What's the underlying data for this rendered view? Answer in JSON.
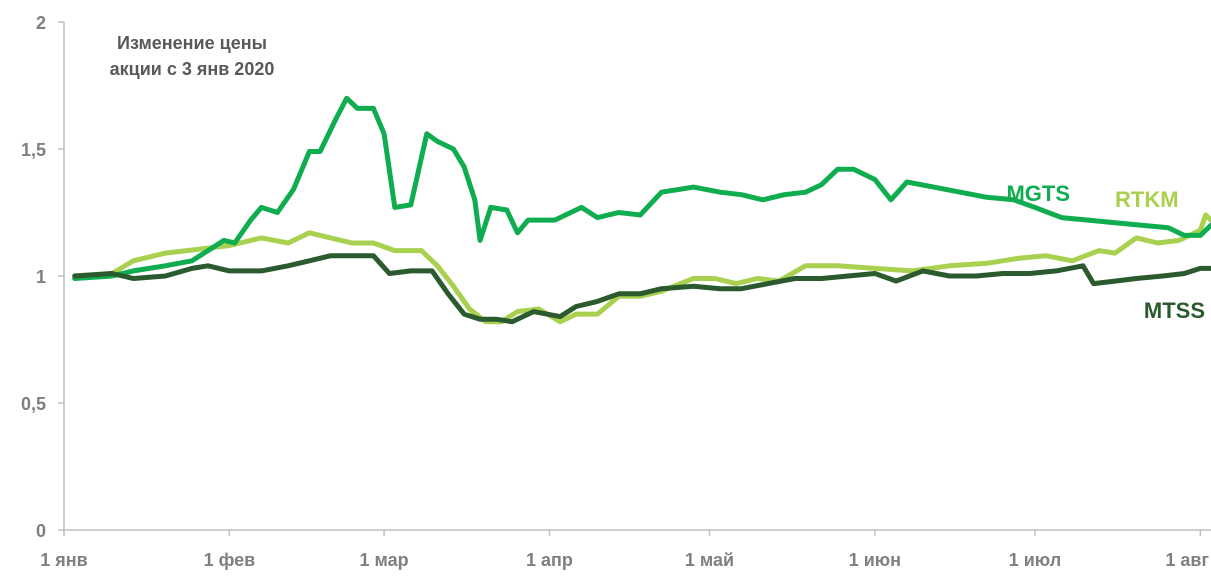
{
  "chart_data": {
    "type": "line",
    "title_lines": [
      "Изменение цены",
      "акции с 3 янв 2020"
    ],
    "xlabel": "",
    "ylabel": "",
    "x_range": [
      "2020-01-01",
      "2020-08-03"
    ],
    "ylim": [
      0,
      2
    ],
    "y_ticks": [
      0,
      0.5,
      1,
      1.5,
      2
    ],
    "y_tick_labels": [
      "0",
      "0,5",
      "1",
      "1,5",
      "2"
    ],
    "x_ticks": [
      "2020-01-01",
      "2020-02-01",
      "2020-03-01",
      "2020-04-01",
      "2020-05-01",
      "2020-06-01",
      "2020-07-01",
      "2020-08-01"
    ],
    "x_tick_labels": [
      "1 янв",
      "1 фев",
      "1 мар",
      "1 апр",
      "1 май",
      "1 июн",
      "1 июл",
      "1 авг"
    ],
    "grid": false,
    "legend": "inline labels",
    "series": [
      {
        "name": "RTKM",
        "color": "#a9d04f",
        "points": [
          [
            "2020-01-03",
            1.0
          ],
          [
            "2020-01-10",
            1.01
          ],
          [
            "2020-01-14",
            1.06
          ],
          [
            "2020-01-20",
            1.09
          ],
          [
            "2020-01-24",
            1.1
          ],
          [
            "2020-01-28",
            1.11
          ],
          [
            "2020-02-01",
            1.12
          ],
          [
            "2020-02-07",
            1.15
          ],
          [
            "2020-02-12",
            1.13
          ],
          [
            "2020-02-16",
            1.17
          ],
          [
            "2020-02-20",
            1.15
          ],
          [
            "2020-02-24",
            1.13
          ],
          [
            "2020-02-28",
            1.13
          ],
          [
            "2020-03-03",
            1.1
          ],
          [
            "2020-03-08",
            1.1
          ],
          [
            "2020-03-11",
            1.04
          ],
          [
            "2020-03-14",
            0.96
          ],
          [
            "2020-03-17",
            0.87
          ],
          [
            "2020-03-20",
            0.82
          ],
          [
            "2020-03-23",
            0.82
          ],
          [
            "2020-03-26",
            0.86
          ],
          [
            "2020-03-30",
            0.87
          ],
          [
            "2020-04-03",
            0.82
          ],
          [
            "2020-04-06",
            0.85
          ],
          [
            "2020-04-10",
            0.85
          ],
          [
            "2020-04-14",
            0.92
          ],
          [
            "2020-04-18",
            0.92
          ],
          [
            "2020-04-22",
            0.94
          ],
          [
            "2020-04-28",
            0.99
          ],
          [
            "2020-05-02",
            0.99
          ],
          [
            "2020-05-06",
            0.97
          ],
          [
            "2020-05-10",
            0.99
          ],
          [
            "2020-05-14",
            0.98
          ],
          [
            "2020-05-19",
            1.04
          ],
          [
            "2020-05-25",
            1.04
          ],
          [
            "2020-06-01",
            1.03
          ],
          [
            "2020-06-08",
            1.02
          ],
          [
            "2020-06-15",
            1.04
          ],
          [
            "2020-06-22",
            1.05
          ],
          [
            "2020-06-28",
            1.07
          ],
          [
            "2020-07-03",
            1.08
          ],
          [
            "2020-07-08",
            1.06
          ],
          [
            "2020-07-13",
            1.1
          ],
          [
            "2020-07-16",
            1.09
          ],
          [
            "2020-07-20",
            1.15
          ],
          [
            "2020-07-24",
            1.13
          ],
          [
            "2020-07-28",
            1.14
          ],
          [
            "2020-08-01",
            1.18
          ],
          [
            "2020-08-02",
            1.24
          ],
          [
            "2020-08-03",
            1.22
          ]
        ]
      },
      {
        "name": "MGTS",
        "color": "#0fad4f",
        "points": [
          [
            "2020-01-03",
            0.99
          ],
          [
            "2020-01-10",
            1.0
          ],
          [
            "2020-01-14",
            1.02
          ],
          [
            "2020-01-20",
            1.04
          ],
          [
            "2020-01-25",
            1.06
          ],
          [
            "2020-01-28",
            1.1
          ],
          [
            "2020-01-31",
            1.14
          ],
          [
            "2020-02-02",
            1.13
          ],
          [
            "2020-02-05",
            1.22
          ],
          [
            "2020-02-07",
            1.27
          ],
          [
            "2020-02-10",
            1.25
          ],
          [
            "2020-02-13",
            1.34
          ],
          [
            "2020-02-16",
            1.49
          ],
          [
            "2020-02-18",
            1.49
          ],
          [
            "2020-02-21",
            1.62
          ],
          [
            "2020-02-23",
            1.7
          ],
          [
            "2020-02-25",
            1.66
          ],
          [
            "2020-02-28",
            1.66
          ],
          [
            "2020-03-01",
            1.56
          ],
          [
            "2020-03-03",
            1.27
          ],
          [
            "2020-03-06",
            1.28
          ],
          [
            "2020-03-09",
            1.56
          ],
          [
            "2020-03-11",
            1.53
          ],
          [
            "2020-03-14",
            1.5
          ],
          [
            "2020-03-16",
            1.43
          ],
          [
            "2020-03-18",
            1.3
          ],
          [
            "2020-03-19",
            1.14
          ],
          [
            "2020-03-21",
            1.27
          ],
          [
            "2020-03-24",
            1.26
          ],
          [
            "2020-03-26",
            1.17
          ],
          [
            "2020-03-28",
            1.22
          ],
          [
            "2020-04-02",
            1.22
          ],
          [
            "2020-04-07",
            1.27
          ],
          [
            "2020-04-10",
            1.23
          ],
          [
            "2020-04-14",
            1.25
          ],
          [
            "2020-04-18",
            1.24
          ],
          [
            "2020-04-22",
            1.33
          ],
          [
            "2020-04-28",
            1.35
          ],
          [
            "2020-05-03",
            1.33
          ],
          [
            "2020-05-07",
            1.32
          ],
          [
            "2020-05-11",
            1.3
          ],
          [
            "2020-05-15",
            1.32
          ],
          [
            "2020-05-19",
            1.33
          ],
          [
            "2020-05-22",
            1.36
          ],
          [
            "2020-05-25",
            1.42
          ],
          [
            "2020-05-28",
            1.42
          ],
          [
            "2020-06-01",
            1.38
          ],
          [
            "2020-06-04",
            1.3
          ],
          [
            "2020-06-07",
            1.37
          ],
          [
            "2020-06-12",
            1.35
          ],
          [
            "2020-06-17",
            1.33
          ],
          [
            "2020-06-22",
            1.31
          ],
          [
            "2020-06-27",
            1.3
          ],
          [
            "2020-07-01",
            1.27
          ],
          [
            "2020-07-06",
            1.23
          ],
          [
            "2020-07-11",
            1.22
          ],
          [
            "2020-07-16",
            1.21
          ],
          [
            "2020-07-21",
            1.2
          ],
          [
            "2020-07-26",
            1.19
          ],
          [
            "2020-07-29",
            1.16
          ],
          [
            "2020-08-01",
            1.16
          ],
          [
            "2020-08-03",
            1.2
          ]
        ]
      },
      {
        "name": "MTSS",
        "color": "#2b5a2f",
        "points": [
          [
            "2020-01-03",
            1.0
          ],
          [
            "2020-01-10",
            1.01
          ],
          [
            "2020-01-14",
            0.99
          ],
          [
            "2020-01-20",
            1.0
          ],
          [
            "2020-01-25",
            1.03
          ],
          [
            "2020-01-28",
            1.04
          ],
          [
            "2020-02-01",
            1.02
          ],
          [
            "2020-02-07",
            1.02
          ],
          [
            "2020-02-12",
            1.04
          ],
          [
            "2020-02-16",
            1.06
          ],
          [
            "2020-02-20",
            1.08
          ],
          [
            "2020-02-24",
            1.08
          ],
          [
            "2020-02-28",
            1.08
          ],
          [
            "2020-03-02",
            1.01
          ],
          [
            "2020-03-06",
            1.02
          ],
          [
            "2020-03-10",
            1.02
          ],
          [
            "2020-03-13",
            0.93
          ],
          [
            "2020-03-16",
            0.85
          ],
          [
            "2020-03-19",
            0.83
          ],
          [
            "2020-03-22",
            0.83
          ],
          [
            "2020-03-25",
            0.82
          ],
          [
            "2020-03-29",
            0.86
          ],
          [
            "2020-04-03",
            0.84
          ],
          [
            "2020-04-06",
            0.88
          ],
          [
            "2020-04-10",
            0.9
          ],
          [
            "2020-04-14",
            0.93
          ],
          [
            "2020-04-18",
            0.93
          ],
          [
            "2020-04-22",
            0.95
          ],
          [
            "2020-04-28",
            0.96
          ],
          [
            "2020-05-03",
            0.95
          ],
          [
            "2020-05-07",
            0.95
          ],
          [
            "2020-05-12",
            0.97
          ],
          [
            "2020-05-17",
            0.99
          ],
          [
            "2020-05-22",
            0.99
          ],
          [
            "2020-05-27",
            1.0
          ],
          [
            "2020-06-01",
            1.01
          ],
          [
            "2020-06-05",
            0.98
          ],
          [
            "2020-06-10",
            1.02
          ],
          [
            "2020-06-15",
            1.0
          ],
          [
            "2020-06-20",
            1.0
          ],
          [
            "2020-06-25",
            1.01
          ],
          [
            "2020-06-30",
            1.01
          ],
          [
            "2020-07-05",
            1.02
          ],
          [
            "2020-07-10",
            1.04
          ],
          [
            "2020-07-12",
            0.97
          ],
          [
            "2020-07-16",
            0.98
          ],
          [
            "2020-07-20",
            0.99
          ],
          [
            "2020-07-25",
            1.0
          ],
          [
            "2020-07-29",
            1.01
          ],
          [
            "2020-08-01",
            1.03
          ],
          [
            "2020-08-03",
            1.03
          ]
        ]
      }
    ]
  }
}
